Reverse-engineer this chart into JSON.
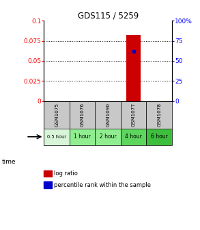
{
  "title": "GDS115 / 5259",
  "samples": [
    "GSM1075",
    "GSM1076",
    "GSM1090",
    "GSM1077",
    "GSM1078"
  ],
  "time_labels": [
    "0.5 hour",
    "1 hour",
    "2 hour",
    "4 hour",
    "6 hour"
  ],
  "time_colors": [
    "#d9f5d9",
    "#90ee90",
    "#90ee90",
    "#5cd65c",
    "#3dbe3d"
  ],
  "log_ratio_values": [
    0,
    0,
    0,
    0.082,
    0
  ],
  "percentile_values": [
    0,
    0,
    0,
    0.062,
    0
  ],
  "bar_color": "#cc0000",
  "marker_color": "#0000cc",
  "left_ylim": [
    0,
    0.1
  ],
  "right_ylim": [
    0,
    100
  ],
  "left_yticks": [
    0,
    0.025,
    0.05,
    0.075,
    0.1
  ],
  "right_yticks": [
    0,
    25,
    50,
    75,
    100
  ],
  "left_yticklabels": [
    "0",
    "0.025",
    "0.05",
    "0.075",
    "0.1"
  ],
  "right_yticklabels": [
    "0",
    "25",
    "50",
    "75",
    "100%"
  ],
  "dotted_lines": [
    0.025,
    0.05,
    0.075
  ],
  "bg_color": "#ffffff",
  "sample_row_color": "#c8c8c8",
  "legend_log_ratio": "log ratio",
  "legend_percentile": "percentile rank within the sample"
}
